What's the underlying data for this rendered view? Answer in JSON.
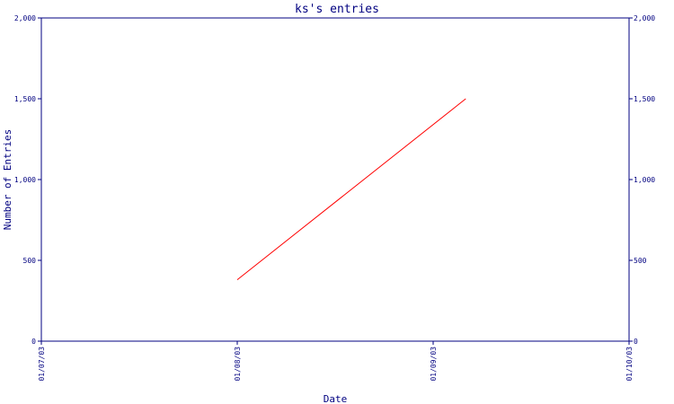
{
  "chart_data": {
    "type": "line",
    "title": "ks's entries",
    "xlabel": "Date",
    "ylabel": "Number of Entries",
    "x_ticks": [
      "01/07/03",
      "01/08/03",
      "01/09/03",
      "01/10/03"
    ],
    "y_ticks": [
      "0",
      "500",
      "1,000",
      "1,500",
      "2,000"
    ],
    "ylim": [
      0,
      2000
    ],
    "xlim": [
      "01/07/03",
      "01/10/03"
    ],
    "grid": false,
    "series": [
      {
        "x": [
          "01/08/03",
          "01/09/03 ~4h"
        ],
        "y": [
          380,
          1500
        ]
      }
    ],
    "colors": {
      "axis": "#000080",
      "line": "#ff0000",
      "background": "#ffffff"
    }
  }
}
